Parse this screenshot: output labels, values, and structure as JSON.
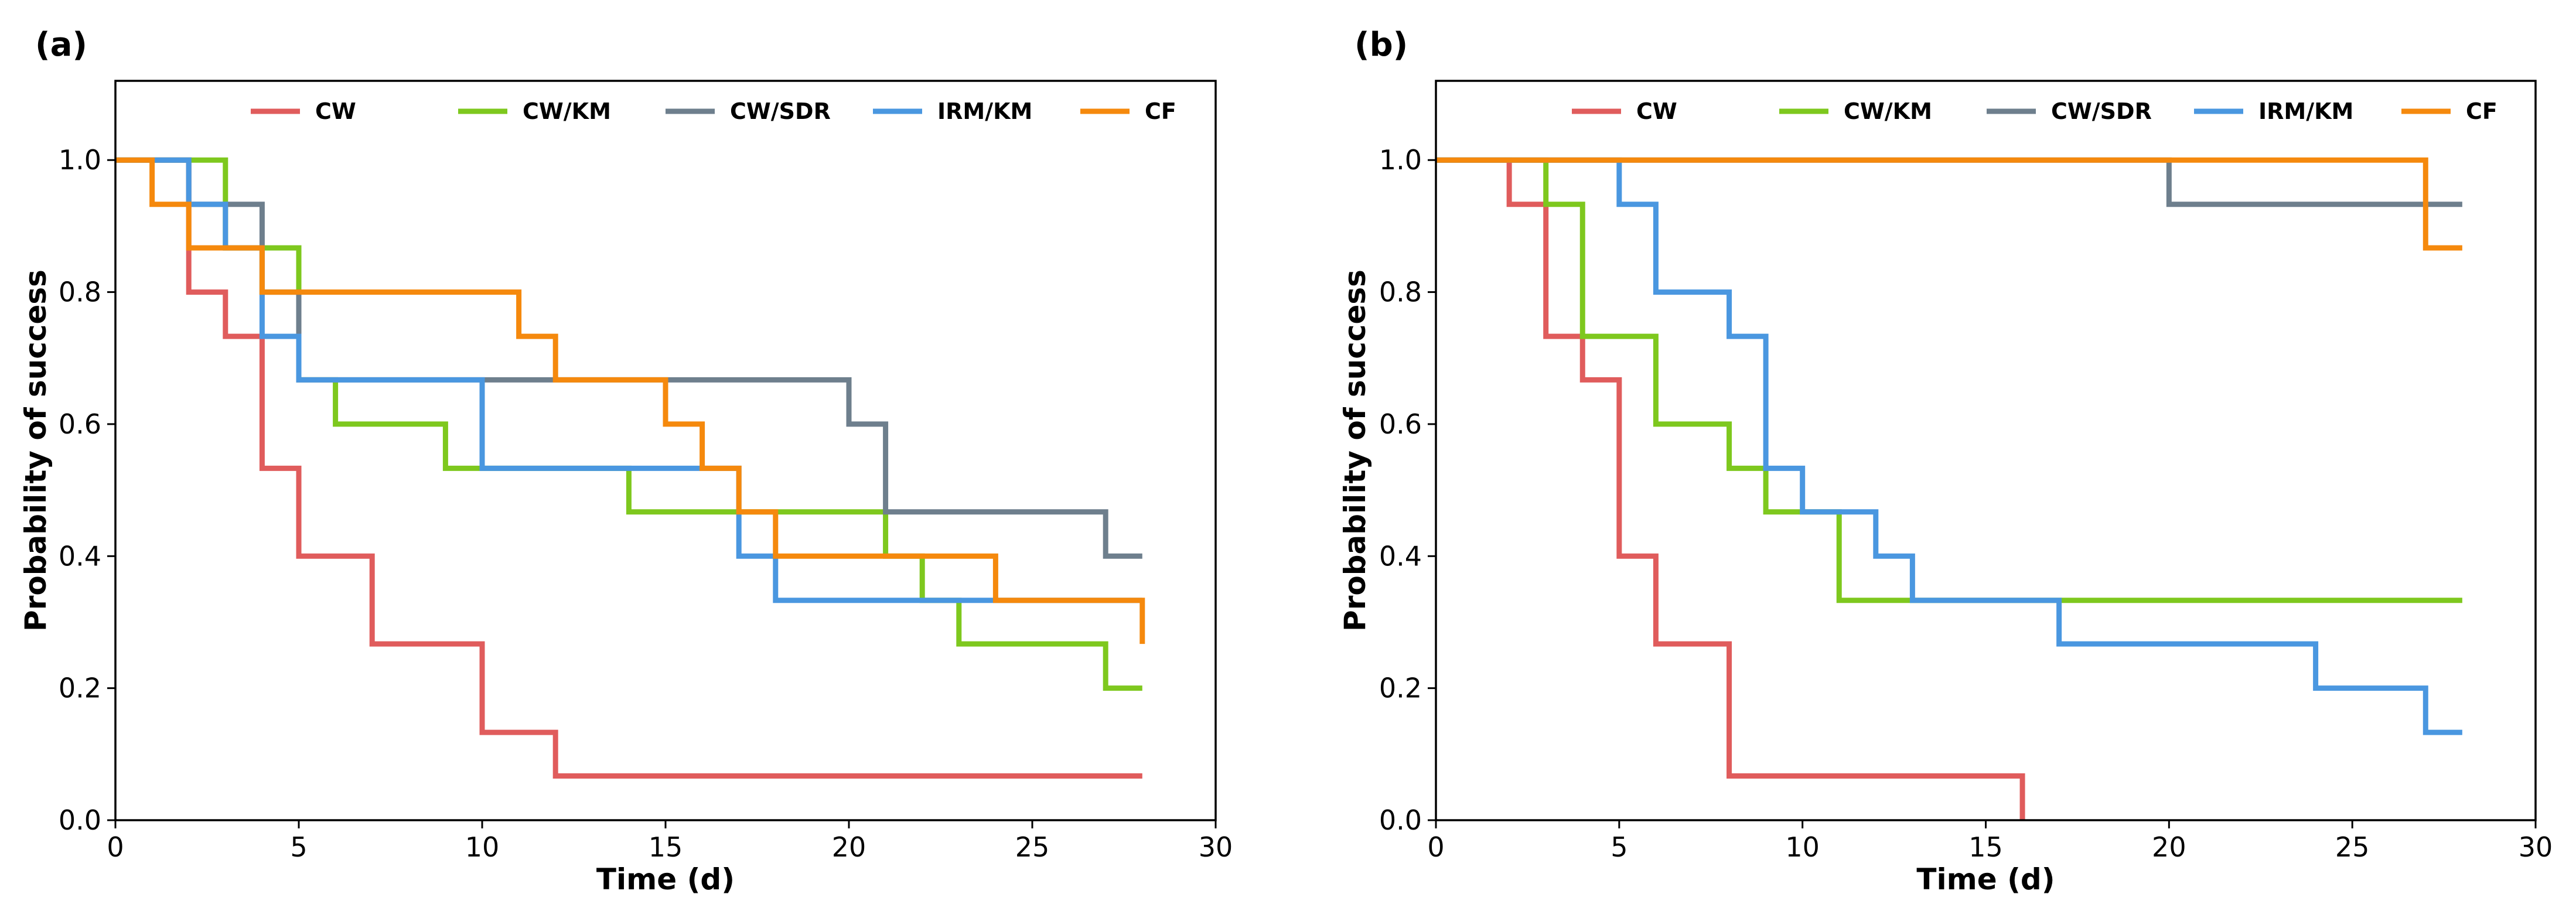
{
  "chart_data": [
    {
      "type": "line",
      "panel_label": "(a)",
      "xlabel": "Time (d)",
      "ylabel": "Probability of success",
      "xlim": [
        0,
        30
      ],
      "ylim": [
        0,
        1.12
      ],
      "xticks": [
        0,
        5,
        10,
        15,
        20,
        25,
        30
      ],
      "xtick_labels": [
        "0",
        "5",
        "10",
        "15",
        "20",
        "25",
        "30"
      ],
      "yticks": [
        0.0,
        0.2,
        0.4,
        0.6,
        0.8,
        1.0
      ],
      "ytick_labels": [
        "0.0",
        "0.2",
        "0.4",
        "0.6",
        "0.8",
        "1.0"
      ],
      "grid": false,
      "legend": "top-center",
      "step": "post",
      "series": [
        {
          "name": "CW",
          "color": "#e05c5c",
          "x": [
            0,
            2,
            3,
            4,
            5,
            7,
            10,
            12,
            28
          ],
          "y": [
            1.0,
            0.8,
            0.733,
            0.533,
            0.4,
            0.267,
            0.133,
            0.067,
            0.067
          ]
        },
        {
          "name": "CW/KM",
          "color": "#7ec81e",
          "x": [
            0,
            3,
            5,
            6,
            9,
            14,
            21,
            22,
            23,
            27,
            28
          ],
          "y": [
            1.0,
            0.867,
            0.667,
            0.6,
            0.533,
            0.467,
            0.4,
            0.333,
            0.267,
            0.2,
            0.2
          ]
        },
        {
          "name": "CW/SDR",
          "color": "#6e7f8d",
          "x": [
            0,
            2,
            4,
            5,
            20,
            21,
            27,
            28
          ],
          "y": [
            1.0,
            0.933,
            0.8,
            0.667,
            0.6,
            0.467,
            0.4,
            0.4
          ]
        },
        {
          "name": "IRM/KM",
          "color": "#4a97e0",
          "x": [
            0,
            2,
            3,
            4,
            5,
            10,
            17,
            18,
            28
          ],
          "y": [
            1.0,
            0.933,
            0.867,
            0.733,
            0.667,
            0.533,
            0.4,
            0.333,
            0.333
          ]
        },
        {
          "name": "CF",
          "color": "#f5890d",
          "x": [
            0,
            1,
            2,
            4,
            11,
            12,
            15,
            16,
            17,
            18,
            24,
            28
          ],
          "y": [
            1.0,
            0.933,
            0.867,
            0.8,
            0.733,
            0.667,
            0.6,
            0.533,
            0.467,
            0.4,
            0.333,
            0.267
          ]
        }
      ]
    },
    {
      "type": "line",
      "panel_label": "(b)",
      "xlabel": "Time (d)",
      "ylabel": "Probability of success",
      "xlim": [
        0,
        30
      ],
      "ylim": [
        0,
        1.12
      ],
      "xticks": [
        0,
        5,
        10,
        15,
        20,
        25,
        30
      ],
      "xtick_labels": [
        "0",
        "5",
        "10",
        "15",
        "20",
        "25",
        "30"
      ],
      "yticks": [
        0.0,
        0.2,
        0.4,
        0.6,
        0.8,
        1.0
      ],
      "ytick_labels": [
        "0.0",
        "0.2",
        "0.4",
        "0.6",
        "0.8",
        "1.0"
      ],
      "grid": false,
      "legend": "top-center",
      "step": "post",
      "series": [
        {
          "name": "CW",
          "color": "#e05c5c",
          "x": [
            0,
            2,
            3,
            4,
            5,
            6,
            8,
            16
          ],
          "y": [
            1.0,
            0.933,
            0.733,
            0.667,
            0.4,
            0.267,
            0.067,
            0.0
          ]
        },
        {
          "name": "CW/KM",
          "color": "#7ec81e",
          "x": [
            0,
            3,
            4,
            6,
            8,
            9,
            11,
            28
          ],
          "y": [
            1.0,
            0.933,
            0.733,
            0.6,
            0.533,
            0.467,
            0.333,
            0.333
          ]
        },
        {
          "name": "CW/SDR",
          "color": "#6e7f8d",
          "x": [
            0,
            20,
            28
          ],
          "y": [
            1.0,
            0.933,
            0.933
          ]
        },
        {
          "name": "IRM/KM",
          "color": "#4a97e0",
          "x": [
            0,
            5,
            6,
            8,
            9,
            10,
            12,
            13,
            17,
            24,
            27,
            28
          ],
          "y": [
            1.0,
            0.933,
            0.8,
            0.733,
            0.533,
            0.467,
            0.4,
            0.333,
            0.267,
            0.2,
            0.133,
            0.133
          ]
        },
        {
          "name": "CF",
          "color": "#f5890d",
          "x": [
            0,
            27,
            28
          ],
          "y": [
            1.0,
            0.867,
            0.867
          ]
        }
      ]
    }
  ]
}
